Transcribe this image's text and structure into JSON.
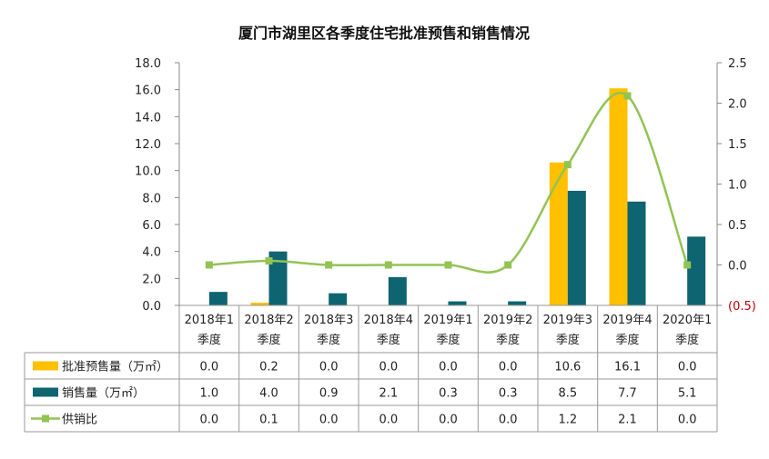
{
  "chart_data": {
    "type": "bar",
    "title": "厦门市湖里区各季度住宅批准预售和销售情况",
    "categories": [
      [
        "2018年1",
        "季度"
      ],
      [
        "2018年2",
        "季度"
      ],
      [
        "2018年3",
        "季度"
      ],
      [
        "2018年4",
        "季度"
      ],
      [
        "2019年1",
        "季度"
      ],
      [
        "2019年2",
        "季度"
      ],
      [
        "2019年3",
        "季度"
      ],
      [
        "2019年4",
        "季度"
      ],
      [
        "2020年1",
        "季度"
      ]
    ],
    "y_left": {
      "ylim": [
        0,
        18
      ],
      "ticks": [
        "0.0",
        "2.0",
        "4.0",
        "6.0",
        "8.0",
        "10.0",
        "12.0",
        "14.0",
        "16.0",
        "18.0"
      ]
    },
    "y_right": {
      "ylim": [
        -0.5,
        2.5
      ],
      "ticks": [
        "(0.5)",
        "0.0",
        "0.5",
        "1.0",
        "1.5",
        "2.0",
        "2.5"
      ]
    },
    "series": [
      {
        "name": "批准预售量（万㎡）",
        "kind": "bar",
        "axis": "left",
        "color": "#ffc000",
        "values": [
          0.0,
          0.2,
          0.0,
          0.0,
          0.0,
          0.0,
          10.6,
          16.1,
          0.0
        ],
        "labels": [
          "0.0",
          "0.2",
          "0.0",
          "0.0",
          "0.0",
          "0.0",
          "10.6",
          "16.1",
          "0.0"
        ]
      },
      {
        "name": "销售量（万㎡）",
        "kind": "bar",
        "axis": "left",
        "color": "#0e6470",
        "values": [
          1.0,
          4.0,
          0.9,
          2.1,
          0.3,
          0.3,
          8.5,
          7.7,
          5.1
        ],
        "labels": [
          "1.0",
          "4.0",
          "0.9",
          "2.1",
          "0.3",
          "0.3",
          "8.5",
          "7.7",
          "5.1"
        ]
      },
      {
        "name": "供销比",
        "kind": "line",
        "axis": "right",
        "color": "#92c353",
        "values": [
          0.0,
          0.05,
          0.0,
          0.0,
          0.0,
          0.0,
          1.24,
          2.09,
          0.0
        ],
        "labels": [
          "0.0",
          "0.1",
          "0.0",
          "0.0",
          "0.0",
          "0.0",
          "1.2",
          "2.1",
          "0.0"
        ]
      }
    ]
  }
}
